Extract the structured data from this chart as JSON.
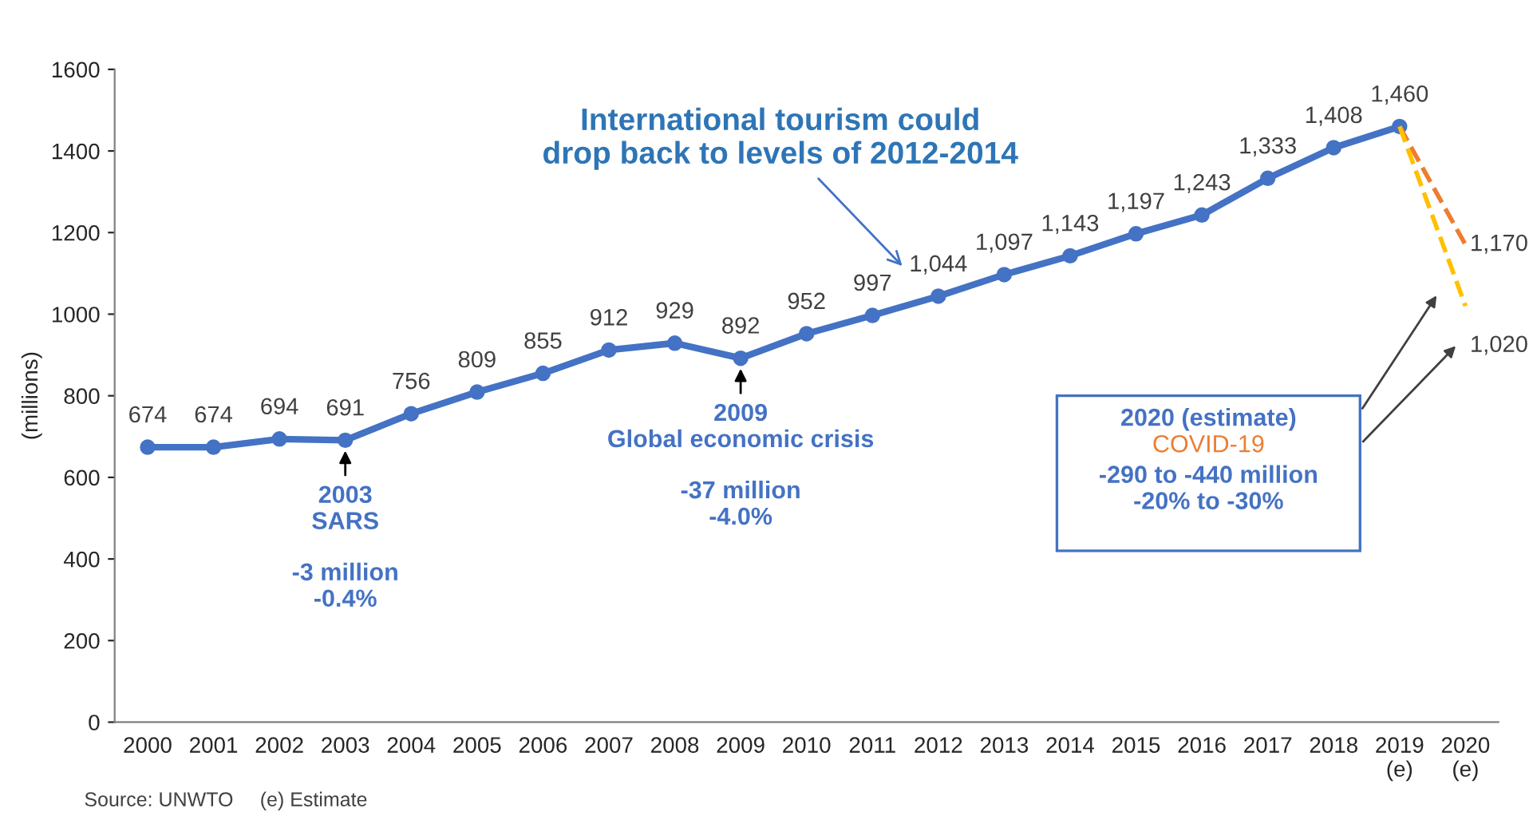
{
  "chart_data": {
    "type": "line",
    "categories": [
      "2000",
      "2001",
      "2002",
      "2003",
      "2004",
      "2005",
      "2006",
      "2007",
      "2008",
      "2009",
      "2010",
      "2011",
      "2012",
      "2013",
      "2014",
      "2015",
      "2016",
      "2017",
      "2018",
      "2019\n(e)",
      "2020\n(e)"
    ],
    "series": [
      {
        "color": "#4472c4",
        "marker": "circle",
        "line_style": "solid",
        "values": [
          674,
          674,
          694,
          691,
          756,
          809,
          855,
          912,
          929,
          892,
          952,
          997,
          1044,
          1097,
          1143,
          1197,
          1243,
          1333,
          1408,
          1460,
          null
        ],
        "value_labels": [
          "674",
          "674",
          "694",
          "691",
          "756",
          "809",
          "855",
          "912",
          "929",
          "892",
          "952",
          "997",
          "1,044",
          "1,097",
          "1,143",
          "1,197",
          "1,243",
          "1,333",
          "1,408",
          "1,460",
          null
        ]
      },
      {
        "type": "line",
        "color": "#ed7d31",
        "marker": "none",
        "line_style": "dashed",
        "values": [
          null,
          null,
          null,
          null,
          null,
          null,
          null,
          null,
          null,
          null,
          null,
          null,
          null,
          null,
          null,
          null,
          null,
          null,
          null,
          1460,
          1170
        ],
        "value_labels": [
          null,
          null,
          null,
          null,
          null,
          null,
          null,
          null,
          null,
          null,
          null,
          null,
          null,
          null,
          null,
          null,
          null,
          null,
          null,
          null,
          "1,170"
        ]
      },
      {
        "type": "line",
        "color": "#ffc000",
        "marker": "none",
        "line_style": "dashed",
        "values": [
          null,
          null,
          null,
          null,
          null,
          null,
          null,
          null,
          null,
          null,
          null,
          null,
          null,
          null,
          null,
          null,
          null,
          null,
          null,
          1460,
          1020
        ],
        "value_labels": [
          null,
          null,
          null,
          null,
          null,
          null,
          null,
          null,
          null,
          null,
          null,
          null,
          null,
          null,
          null,
          null,
          null,
          null,
          null,
          null,
          "1,020"
        ]
      }
    ],
    "ylabel": "(millions)",
    "ylim": [
      0,
      1600
    ],
    "yticks": [
      0,
      200,
      400,
      600,
      800,
      1000,
      1200,
      1400,
      1600
    ],
    "grid": false,
    "legend": false,
    "annotations": [
      "International tourism could\ndrop back to levels of 2012-2014",
      {
        "text": "2003\nSARS",
        "x": "2003",
        "y": 691
      },
      "-3 million\n-0.4%",
      {
        "text": "2009\nGlobal economic crisis",
        "x": "2009",
        "y": 892
      },
      "-37 million\n-4.0%",
      "2020 (estimate)",
      "COVID-19",
      "-290 to -440 million\n-20% to -30%",
      "Source: UNWTO",
      "(e) Estimate"
    ]
  }
}
